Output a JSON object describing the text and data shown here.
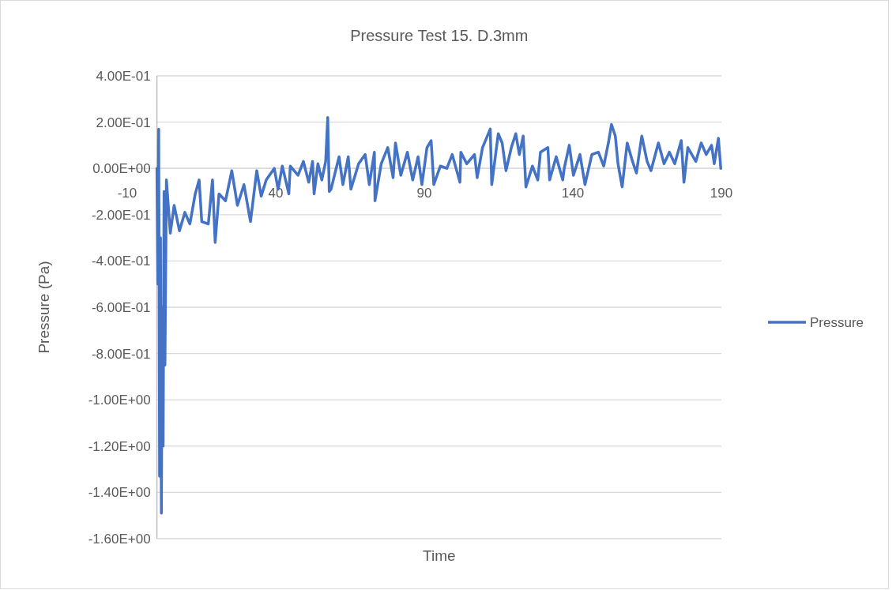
{
  "chart_data": {
    "type": "line",
    "title": "Pressure Test 15. D.3mm",
    "xlabel": "Time",
    "ylabel": "Pressure (Pa)",
    "xlim": [
      -10,
      190
    ],
    "xticks": [
      -10,
      40,
      90,
      140,
      190
    ],
    "ylim": [
      -1.6,
      0.4
    ],
    "yticks": [
      {
        "value": 0.4,
        "label": "4.00E-01"
      },
      {
        "value": 0.2,
        "label": "2.00E-01"
      },
      {
        "value": 0,
        "label": "0.00E+00"
      },
      {
        "value": -0.2,
        "label": "-2.00E-01"
      },
      {
        "value": -0.4,
        "label": "-4.00E-01"
      },
      {
        "value": -0.6,
        "label": "-6.00E-01"
      },
      {
        "value": -0.8,
        "label": "-8.00E-01"
      },
      {
        "value": -1,
        "label": "-1.00E+00"
      },
      {
        "value": -1.2,
        "label": "-1.20E+00"
      },
      {
        "value": -1.4,
        "label": "-1.40E+00"
      },
      {
        "value": -1.6,
        "label": "-1.60E+00"
      }
    ],
    "grid": "y",
    "legend": "right",
    "x": [
      0,
      0.3,
      0.6,
      0.9,
      1.2,
      1.5,
      1.8,
      2.1,
      2.4,
      2.7,
      3.2,
      4.5,
      5.8,
      7.6,
      9.4,
      11.1,
      12.9,
      14.2,
      15.1,
      17.3,
      18.7,
      19.6,
      20.9,
      23.1,
      25.2,
      27.1,
      29.3,
      31.5,
      33.6,
      35.1,
      36.8,
      39.5,
      40.8,
      42.2,
      44.4,
      44.9,
      47.5,
      49.3,
      51.1,
      52.4,
      52.9,
      54.2,
      55.5,
      56.8,
      57.5,
      58.0,
      58.6,
      61.3,
      62.6,
      64.4,
      65.3,
      67.9,
      70.1,
      71.5,
      73.2,
      73.4,
      75.5,
      77.7,
      79.5,
      80.3,
      82.1,
      84.3,
      86.1,
      87.9,
      89.2,
      90.9,
      92.3,
      93.2,
      95.4,
      97.6,
      99.4,
      102.0,
      102.3,
      104.3,
      106.9,
      107.8,
      109.6,
      112.2,
      112.7,
      114.9,
      116.2,
      117.5,
      119.3,
      120.8,
      122.0,
      123.3,
      124.2,
      126.4,
      128.2,
      129.1,
      131.6,
      132.2,
      134.4,
      136.6,
      137.1,
      138.8,
      140.2,
      142.4,
      144.1,
      146.4,
      148.6,
      150.4,
      152.1,
      153.0,
      154.3,
      155.2,
      156.6,
      158.3,
      160.1,
      161.4,
      163.2,
      165.0,
      166.3,
      168.8,
      170.7,
      172.5,
      174.3,
      176.5,
      177.4,
      178.7,
      181.4,
      183.2,
      184.9,
      186.7,
      187.6,
      189.0,
      189.8
    ],
    "series": [
      {
        "name": "Pressure",
        "color": "#4472c4",
        "values": [
          0,
          -0.5,
          0.17,
          -1.33,
          -0.3,
          -1.49,
          -0.6,
          -1.2,
          -0.1,
          -0.85,
          -0.05,
          -0.28,
          -0.16,
          -0.27,
          -0.19,
          -0.24,
          -0.11,
          -0.05,
          -0.23,
          -0.24,
          -0.05,
          -0.32,
          -0.11,
          -0.14,
          -0.01,
          -0.16,
          -0.07,
          -0.23,
          -0.01,
          -0.12,
          -0.05,
          0,
          -0.09,
          0.01,
          -0.11,
          0.01,
          -0.03,
          0.03,
          -0.06,
          0.03,
          -0.11,
          0.02,
          -0.05,
          0.03,
          0.22,
          -0.1,
          -0.09,
          0.05,
          -0.07,
          0.05,
          -0.09,
          0.02,
          0.06,
          -0.07,
          0.07,
          -0.14,
          0.02,
          0.09,
          -0.04,
          0.11,
          -0.03,
          0.07,
          -0.05,
          0.05,
          -0.07,
          0.09,
          0.12,
          -0.07,
          0.01,
          0,
          0.06,
          -0.06,
          0.07,
          0.02,
          0.06,
          -0.04,
          0.09,
          0.17,
          -0.07,
          0.15,
          0.11,
          -0.01,
          0.09,
          0.15,
          0.06,
          0.14,
          -0.08,
          0.01,
          -0.05,
          0.07,
          0.09,
          -0.05,
          0.05,
          -0.05,
          0,
          0.1,
          -0.03,
          0.06,
          -0.07,
          0.06,
          0.07,
          0.01,
          0.12,
          0.19,
          0.14,
          0.02,
          -0.08,
          0.11,
          0.03,
          -0.02,
          0.14,
          0.03,
          -0.01,
          0.11,
          0.02,
          0.07,
          0.02,
          0.12,
          -0.06,
          0.09,
          0.03,
          0.11,
          0.06,
          0.1,
          0.02,
          0.13,
          0
        ]
      }
    ]
  }
}
